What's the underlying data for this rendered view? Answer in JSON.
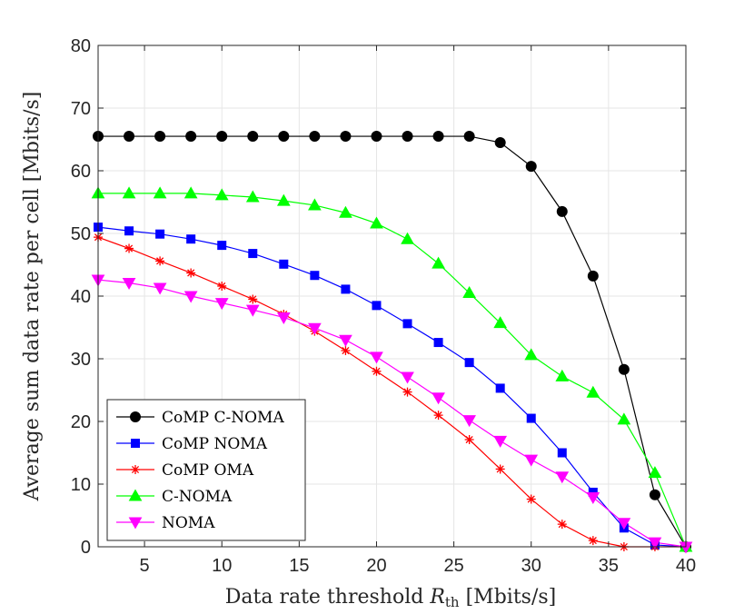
{
  "chart_data": {
    "type": "line",
    "xlabel_main": "Data rate threshold ",
    "xlabel_var": "R",
    "xlabel_sub": "th",
    "xlabel_unit": " [Mbits/s]",
    "ylabel": "Average sum data rate per cell [Mbits/s]",
    "xlim": [
      2,
      40
    ],
    "ylim": [
      0,
      80
    ],
    "xticks": [
      5,
      10,
      15,
      20,
      25,
      30,
      35,
      40
    ],
    "yticks": [
      0,
      10,
      20,
      30,
      40,
      50,
      60,
      70,
      80
    ],
    "grid": true,
    "legend_position": "bottom-left",
    "x": [
      2,
      4,
      6,
      8,
      10,
      12,
      14,
      16,
      18,
      20,
      22,
      24,
      26,
      28,
      30,
      32,
      34,
      36,
      38,
      40
    ],
    "series": [
      {
        "name": "CoMP C-NOMA",
        "color": "#000000",
        "marker": "circle",
        "values": [
          65.5,
          65.5,
          65.5,
          65.5,
          65.5,
          65.5,
          65.5,
          65.5,
          65.5,
          65.5,
          65.5,
          65.5,
          65.5,
          64.5,
          60.7,
          53.5,
          43.2,
          28.3,
          8.3,
          0.0
        ]
      },
      {
        "name": "CoMP NOMA",
        "color": "#0000ff",
        "marker": "square",
        "values": [
          51.0,
          50.4,
          49.9,
          49.1,
          48.1,
          46.8,
          45.1,
          43.3,
          41.1,
          38.5,
          35.6,
          32.6,
          29.4,
          25.3,
          20.5,
          15.0,
          8.7,
          3.0,
          0.3,
          0.0
        ]
      },
      {
        "name": "CoMP OMA",
        "color": "#ff0000",
        "marker": "asterisk",
        "values": [
          49.4,
          47.6,
          45.6,
          43.7,
          41.6,
          39.5,
          37.1,
          34.4,
          31.3,
          28.0,
          24.7,
          21.0,
          17.1,
          12.4,
          7.6,
          3.6,
          1.0,
          0.0,
          0.0,
          0.0
        ]
      },
      {
        "name": "C-NOMA",
        "color": "#00ff00",
        "marker": "triangle-up",
        "values": [
          56.4,
          56.4,
          56.4,
          56.4,
          56.1,
          55.8,
          55.2,
          54.5,
          53.3,
          51.6,
          49.1,
          45.2,
          40.5,
          35.7,
          30.6,
          27.2,
          24.6,
          20.3,
          11.8,
          0.0
        ]
      },
      {
        "name": "NOMA",
        "color": "#ff00ff",
        "marker": "triangle-down",
        "values": [
          42.6,
          42.1,
          41.3,
          40.0,
          38.9,
          37.8,
          36.6,
          34.9,
          33.0,
          30.3,
          27.1,
          23.8,
          20.2,
          16.9,
          13.9,
          11.2,
          7.9,
          3.8,
          0.7,
          0.0
        ]
      }
    ]
  }
}
